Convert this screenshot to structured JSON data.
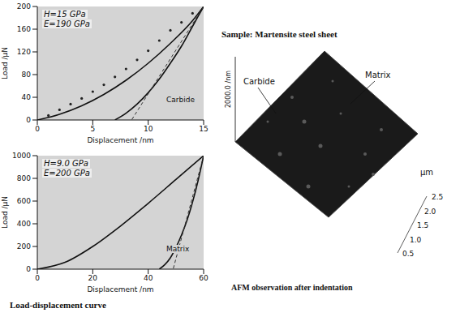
{
  "chart_data": [
    {
      "type": "line",
      "xlabel": "Displacement /nm",
      "ylabel": "Load /µN",
      "xlim": [
        0,
        15
      ],
      "xticks": [
        0,
        5,
        10,
        15
      ],
      "ylim": [
        0,
        200
      ],
      "yticks": [
        0,
        40,
        80,
        120,
        160,
        200
      ],
      "grid": false,
      "annotations": [
        "H=15 GPa",
        "E=190 GPa",
        "Carbide"
      ],
      "series": [
        {
          "type": "line",
          "color": "#111111",
          "line_style": "solid",
          "x": [
            0,
            2,
            4,
            6,
            8,
            10,
            12,
            14,
            15
          ],
          "values": [
            0,
            10,
            25,
            45,
            70,
            100,
            135,
            175,
            200
          ]
        },
        {
          "type": "line",
          "color": "#111111",
          "line_style": "solid",
          "x": [
            15,
            14,
            13,
            12,
            11,
            10,
            9,
            8,
            7
          ],
          "values": [
            200,
            165,
            130,
            100,
            72,
            48,
            28,
            12,
            0
          ]
        },
        {
          "type": "line",
          "color": "#333333",
          "line_style": "dashed",
          "x": [
            15,
            8.5
          ],
          "values": [
            200,
            0
          ]
        },
        {
          "type": "scatter",
          "color": "#222222",
          "marker": "dot",
          "x": [
            1,
            2,
            3,
            4,
            5,
            6,
            7,
            8,
            9,
            10,
            11,
            12,
            13,
            14
          ],
          "values": [
            8,
            18,
            28,
            38,
            50,
            62,
            76,
            90,
            106,
            122,
            140,
            158,
            172,
            188
          ]
        }
      ]
    },
    {
      "type": "line",
      "xlabel": "Displacement /nm",
      "ylabel": "Load /µN",
      "xlim": [
        0,
        60
      ],
      "xticks": [
        0,
        20,
        40,
        60
      ],
      "ylim": [
        0,
        1000
      ],
      "yticks": [
        0,
        200,
        400,
        600,
        800,
        1000
      ],
      "grid": false,
      "annotations": [
        "H=9.0 GPa",
        "E=200 GPa",
        "Matrix"
      ],
      "series": [
        {
          "type": "line",
          "color": "#111111",
          "line_style": "solid",
          "x": [
            0,
            10,
            20,
            30,
            40,
            50,
            60
          ],
          "values": [
            0,
            60,
            200,
            380,
            580,
            790,
            1000
          ]
        },
        {
          "type": "line",
          "color": "#111111",
          "line_style": "solid",
          "x": [
            60,
            58,
            56,
            54,
            52,
            50,
            48,
            46,
            44
          ],
          "values": [
            1000,
            780,
            590,
            430,
            300,
            190,
            100,
            40,
            0
          ]
        },
        {
          "type": "line",
          "color": "#333333",
          "line_style": "dashed",
          "x": [
            60,
            49
          ],
          "values": [
            1000,
            0
          ]
        }
      ]
    }
  ],
  "figure": {
    "caption": "Load-displacement curve",
    "sample": "Sample: Martensite steel sheet",
    "afm": {
      "title": "AFM observation after indentation",
      "labels": [
        "Carbide",
        "Matrix"
      ],
      "z_tick": "2000.0",
      "z_unit": "/nm",
      "xy_unit": "µm",
      "xy_ticks": [
        "0.5",
        "1.0",
        "1.5",
        "2.0",
        "2.5"
      ]
    }
  }
}
